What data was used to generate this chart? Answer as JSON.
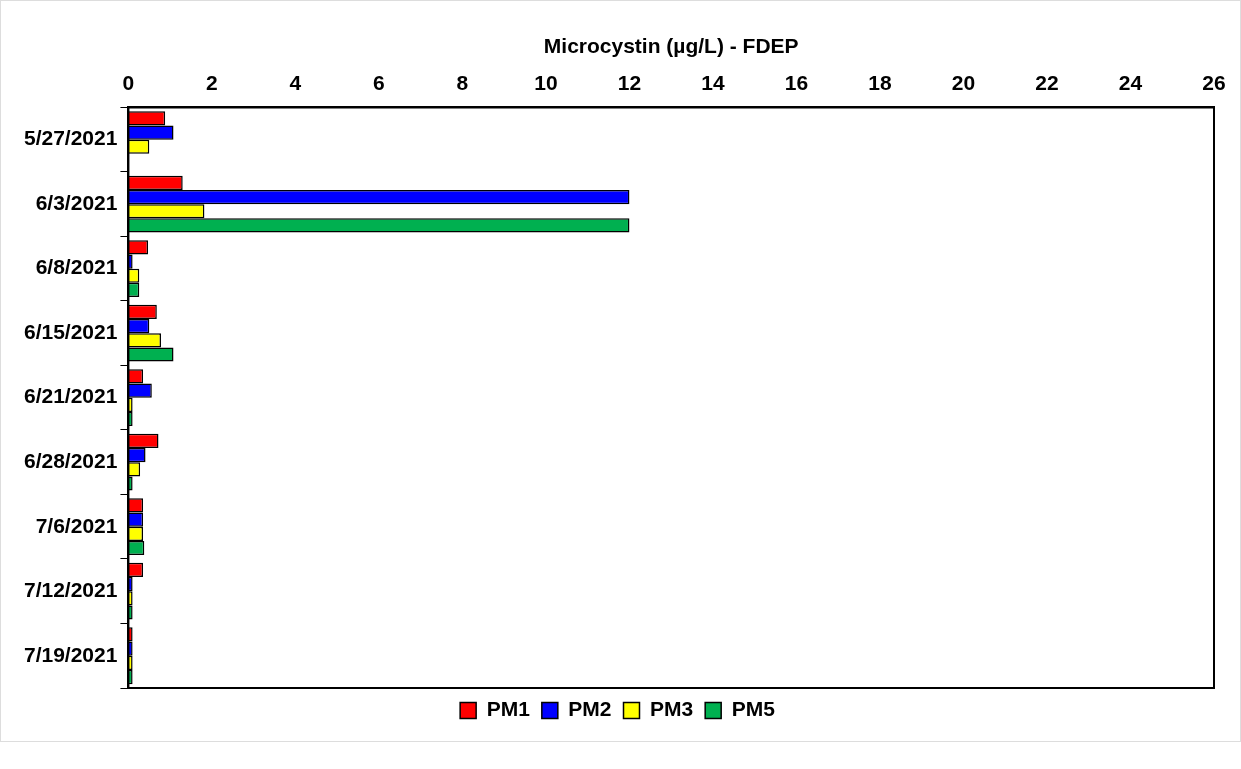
{
  "chart_data": {
    "type": "bar",
    "orientation": "horizontal",
    "xlabel": "Microcystin (µg/L) - FDEP",
    "categories": [
      "5/27/2021",
      "6/3/2021",
      "6/8/2021",
      "6/15/2021",
      "6/21/2021",
      "6/28/2021",
      "7/6/2021",
      "7/12/2021",
      "7/19/2021"
    ],
    "series": [
      {
        "name": "PM1",
        "color": "#ff0000",
        "values": [
          0.88,
          1.3,
          0.47,
          0.68,
          0.35,
          0.72,
          0.35,
          0.35,
          0.1
        ]
      },
      {
        "name": "PM2",
        "color": "#0000ff",
        "values": [
          1.08,
          12,
          0.1,
          0.5,
          0.56,
          0.41,
          0.35,
          0.1,
          0.1
        ]
      },
      {
        "name": "PM3",
        "color": "#ffff00",
        "values": [
          0.5,
          1.82,
          0.26,
          0.78,
          0.1,
          0.28,
          0.35,
          0.1,
          0.1
        ]
      },
      {
        "name": "PM5",
        "color": "#00b050",
        "values": [
          0,
          12,
          0.26,
          1.08,
          0.1,
          0.1,
          0.38,
          0.1,
          0.1
        ]
      }
    ],
    "xlim": [
      0,
      26
    ],
    "xticks": [
      0,
      2,
      4,
      6,
      8,
      10,
      12,
      14,
      16,
      18,
      20,
      22,
      24,
      26
    ],
    "grid": false,
    "legend": "bottom"
  }
}
